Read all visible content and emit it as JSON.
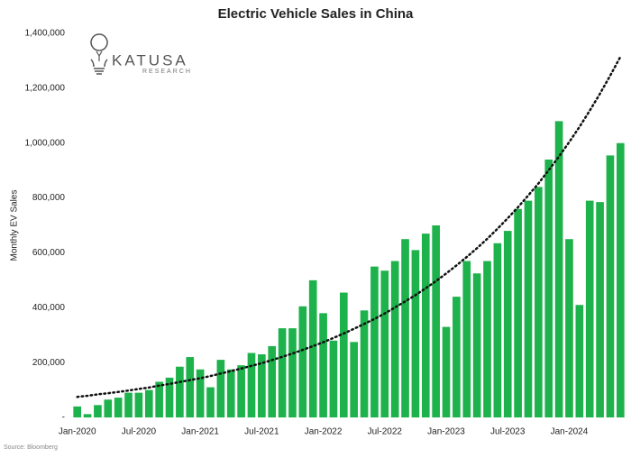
{
  "chart_data": {
    "type": "bar",
    "title": "Electric Vehicle Sales in China",
    "y_label": "Monthly EV Sales",
    "source": "Source: Bloomberg",
    "logo": {
      "name": "KATUSA",
      "subtitle": "RESEARCH"
    },
    "color": "#1db24b",
    "categories": [
      "Jan-2020",
      null,
      null,
      null,
      null,
      null,
      "Jul-2020",
      null,
      null,
      null,
      null,
      null,
      "Jan-2021",
      null,
      null,
      null,
      null,
      null,
      "Jul-2021",
      null,
      null,
      null,
      null,
      null,
      "Jan-2022",
      null,
      null,
      null,
      null,
      null,
      "Jul-2022",
      null,
      null,
      null,
      null,
      null,
      "Jan-2023",
      null,
      null,
      null,
      null,
      null,
      "Jul-2023",
      null,
      null,
      null,
      null,
      null,
      "Jan-2024",
      null,
      null,
      null,
      null,
      null
    ],
    "values": [
      40000,
      12000,
      45000,
      65000,
      72000,
      90000,
      90000,
      100000,
      130000,
      145000,
      185000,
      220000,
      175000,
      110000,
      210000,
      175000,
      190000,
      235000,
      230000,
      260000,
      325000,
      325000,
      405000,
      500000,
      380000,
      280000,
      455000,
      275000,
      390000,
      550000,
      535000,
      570000,
      650000,
      610000,
      670000,
      700000,
      330000,
      440000,
      570000,
      525000,
      570000,
      635000,
      680000,
      760000,
      790000,
      840000,
      940000,
      1080000,
      650000,
      410000,
      790000,
      785000,
      955000,
      1000000
    ],
    "trendline": {
      "color": "#111111",
      "values": [
        75000,
        79000,
        84000,
        88000,
        93000,
        98000,
        104000,
        109000,
        116000,
        122000,
        129000,
        136000,
        143000,
        151000,
        160000,
        169000,
        178000,
        188000,
        198000,
        209000,
        221000,
        233000,
        246000,
        260000,
        274000,
        290000,
        306000,
        323000,
        341000,
        359000,
        379000,
        401000,
        423000,
        446000,
        471000,
        497000,
        525000,
        554000,
        585000,
        617000,
        651000,
        688000,
        726000,
        766000,
        809000,
        853000,
        901000,
        951000,
        1004000,
        1059000,
        1118000,
        1180000,
        1246000,
        1315000
      ]
    },
    "ylim": [
      0,
      1400000
    ],
    "yticks": [
      {
        "value": 0,
        "label": "-"
      },
      {
        "value": 200000,
        "label": "200,000"
      },
      {
        "value": 400000,
        "label": "400,000"
      },
      {
        "value": 600000,
        "label": "600,000"
      },
      {
        "value": 800000,
        "label": "800,000"
      },
      {
        "value": 1000000,
        "label": "1,000,000"
      },
      {
        "value": 1200000,
        "label": "1,200,000"
      },
      {
        "value": 1400000,
        "label": "1,400,000"
      }
    ],
    "grid": false
  }
}
